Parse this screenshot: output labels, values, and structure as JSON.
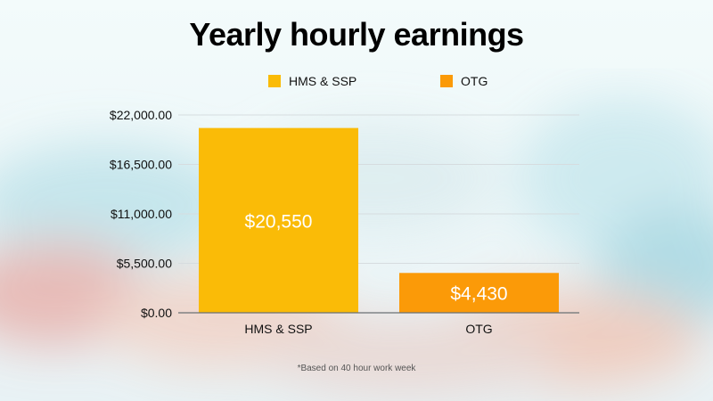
{
  "title": "Yearly hourly earnings",
  "footnote": "*Based on 40 hour work week",
  "colors": {
    "series_1": "#FABB07",
    "series_2": "#FB9A08"
  },
  "chart_data": {
    "type": "bar",
    "categories": [
      "HMS & SSP",
      "OTG"
    ],
    "values": [
      20550,
      4430
    ],
    "data_labels": [
      "$20,550",
      "$4,430"
    ],
    "legend": [
      "HMS & SSP",
      "OTG"
    ],
    "legend_position": "top",
    "ylim": [
      0,
      22000
    ],
    "y_ticks": [
      0,
      5500,
      11000,
      16500,
      22000
    ],
    "y_tick_labels": [
      "$0.00",
      "$5,500.00",
      "$11,000.00",
      "$16,500.00",
      "$22,000.00"
    ],
    "grid": true
  }
}
